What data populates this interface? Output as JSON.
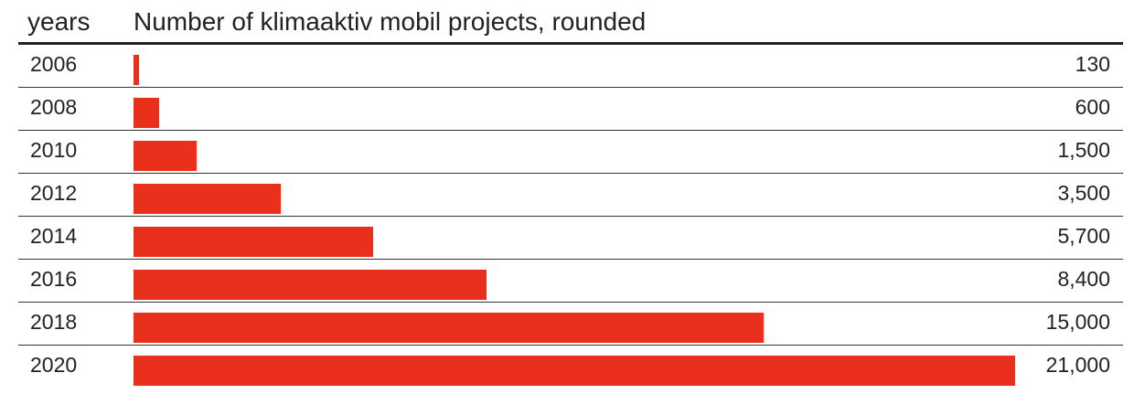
{
  "header": {
    "years_label": "years",
    "title": "Number of klimaaktiv mobil projects, rounded"
  },
  "colors": {
    "bar": "#e8301c"
  },
  "chart_data": {
    "type": "bar",
    "orientation": "horizontal",
    "title": "Number of klimaaktiv mobil projects, rounded",
    "categories": [
      "2006",
      "2008",
      "2010",
      "2012",
      "2014",
      "2016",
      "2018",
      "2020"
    ],
    "values": [
      130,
      600,
      1500,
      3500,
      5700,
      8400,
      15000,
      21000
    ],
    "value_labels": [
      "130",
      "600",
      "1,500",
      "3,500",
      "5,700",
      "8,400",
      "15,000",
      "21,000"
    ],
    "xlim": [
      0,
      21000
    ],
    "grid": false
  }
}
